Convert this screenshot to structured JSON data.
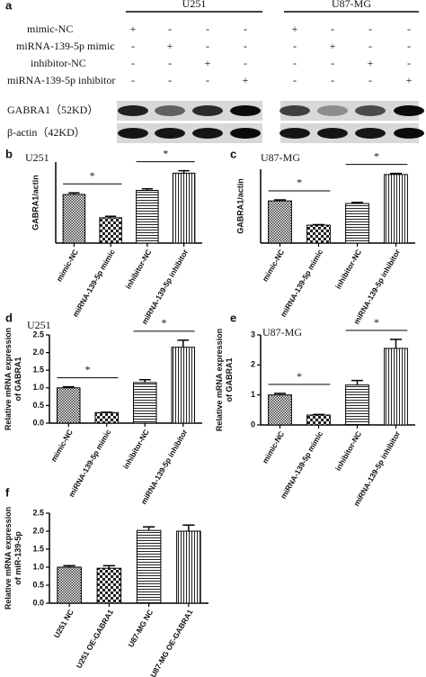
{
  "blot": {
    "panel": "a",
    "groups": [
      "U251",
      "U87-MG"
    ],
    "conditions": [
      "mimic-NC",
      "miRNA-139-5p mimic",
      "inhibitor-NC",
      "miRNA-139-5p inhibitor"
    ],
    "signs": [
      [
        "+",
        "-",
        "-",
        "-",
        "+",
        "-",
        "-",
        "-"
      ],
      [
        "-",
        "+",
        "-",
        "-",
        "-",
        "+",
        "-",
        "-"
      ],
      [
        "-",
        "-",
        "+",
        "-",
        "-",
        "-",
        "+",
        "-"
      ],
      [
        "-",
        "-",
        "-",
        "+",
        "-",
        "-",
        "-",
        "+"
      ]
    ],
    "bands": [
      "GABRA1（52KD）",
      "β-actin（42KD）"
    ]
  },
  "chart_data": [
    {
      "type": "bar",
      "panel": "b",
      "title": "U251",
      "ylabel": "GABRA1/actin",
      "categories": [
        "mimic-NC",
        "miRNA-139-5p mimic",
        "inhibitor-NC",
        "miRNA-139-5p inhibitor"
      ],
      "values": [
        0.24,
        0.125,
        0.26,
        0.345
      ],
      "errors": [
        0.008,
        0.007,
        0.008,
        0.012
      ],
      "ylim": [
        0,
        0.4
      ],
      "annotations": [
        "*",
        "*"
      ]
    },
    {
      "type": "bar",
      "panel": "c",
      "title": "U87-MG",
      "ylabel": "GABRA1/actin",
      "categories": [
        "mimic-NC",
        "miRNA-139-5p mimic",
        "inhibitor-NC",
        "miRNA-139-5p inhibitor"
      ],
      "values": [
        0.16,
        0.068,
        0.15,
        0.26
      ],
      "errors": [
        0.004,
        0.002,
        0.004,
        0.004
      ],
      "ylim": [
        0,
        0.28
      ],
      "annotations": [
        "*",
        "*"
      ]
    },
    {
      "type": "bar",
      "panel": "d",
      "title": "U251",
      "ylabel": "Relative mRNA expression of GABRA1",
      "categories": [
        "mimic-NC",
        "miRNA-139-5p mimic",
        "inhibitor-NC",
        "miRNA-139-5p inhibitor"
      ],
      "values": [
        1.0,
        0.3,
        1.15,
        2.15
      ],
      "errors": [
        0.03,
        0.01,
        0.08,
        0.2
      ],
      "ylim": [
        0,
        2.5
      ],
      "yticks": [
        {
          "value": 0,
          "label": "0.0"
        },
        0.5,
        {
          "value": 1,
          "label": "1.0"
        },
        1.5,
        {
          "value": 2,
          "label": "2.0"
        },
        2.5
      ],
      "annotations": [
        "*",
        "*"
      ]
    },
    {
      "type": "bar",
      "panel": "e",
      "title": "U87-MG",
      "ylabel": "Relative mRNA expression of GABRA1",
      "categories": [
        "mimic-NC",
        "miRNA-139-5p mimic",
        "inhibitor-NC",
        "miRNA-139-5p inhibitor"
      ],
      "values": [
        1.0,
        0.33,
        1.33,
        2.55
      ],
      "errors": [
        0.05,
        0.02,
        0.15,
        0.3
      ],
      "ylim": [
        0,
        3
      ],
      "yticks": [
        0,
        1,
        2,
        3
      ],
      "annotations": [
        "*",
        "*"
      ]
    },
    {
      "type": "bar",
      "panel": "f",
      "ylabel": "Relative mRNA expression of miR-139-5p",
      "categories": [
        "U251 NC",
        "U251 OE-GABRA1",
        "U87-MG NC",
        "U87-MG OE-GABRA1"
      ],
      "values": [
        1.0,
        0.97,
        2.02,
        2.0
      ],
      "errors": [
        0.04,
        0.07,
        0.1,
        0.17
      ],
      "ylim": [
        0,
        2.5
      ],
      "yticks": [
        {
          "value": 0,
          "label": "0.0"
        },
        0.5,
        {
          "value": 1,
          "label": "1.0"
        },
        1.5,
        {
          "value": 2,
          "label": "2.0"
        },
        2.5
      ]
    }
  ]
}
